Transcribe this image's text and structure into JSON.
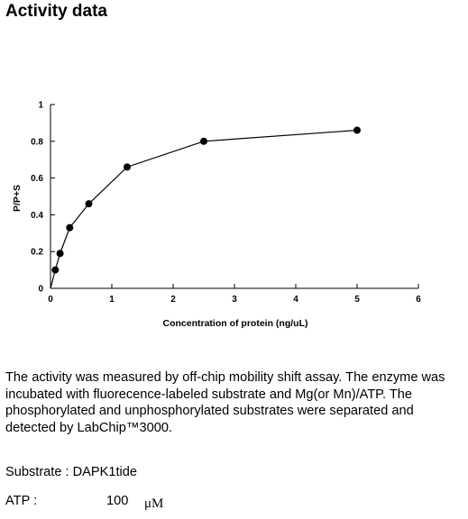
{
  "page": {
    "heading": "Activity data",
    "description": "The activity was measured by off-chip mobility shift assay. The enzyme was incubated with fluorecence-labeled  substrate and Mg(or Mn)/ATP. The phosphorylated and unphosphorylated substrates were separated and detected by LabChip™3000.",
    "substrate": "Substrate : DAPK1tide",
    "atp_label": "ATP :",
    "atp_value": "100",
    "atp_unit": "μM"
  },
  "chart_data": {
    "type": "line",
    "xlabel": "Concentration of protein (ng/uL)",
    "ylabel": "P/P+S",
    "xlim": [
      0,
      6
    ],
    "ylim": [
      0,
      1
    ],
    "xticks": [
      0,
      1,
      2,
      3,
      4,
      5,
      6
    ],
    "yticks": [
      0,
      0.2,
      0.4,
      0.6,
      0.8,
      1
    ],
    "ytick_labels": [
      "0",
      "0.2",
      "0.4",
      "0.6",
      "0.8",
      "1"
    ],
    "grid": false,
    "series": [
      {
        "x": [
          0,
          0.078,
          0.156,
          0.313,
          0.625,
          1.25,
          2.5,
          5
        ],
        "y": [
          0.0,
          0.1,
          0.19,
          0.33,
          0.46,
          0.66,
          0.8,
          0.86
        ],
        "marker": "circle",
        "color": "#000000"
      }
    ]
  }
}
